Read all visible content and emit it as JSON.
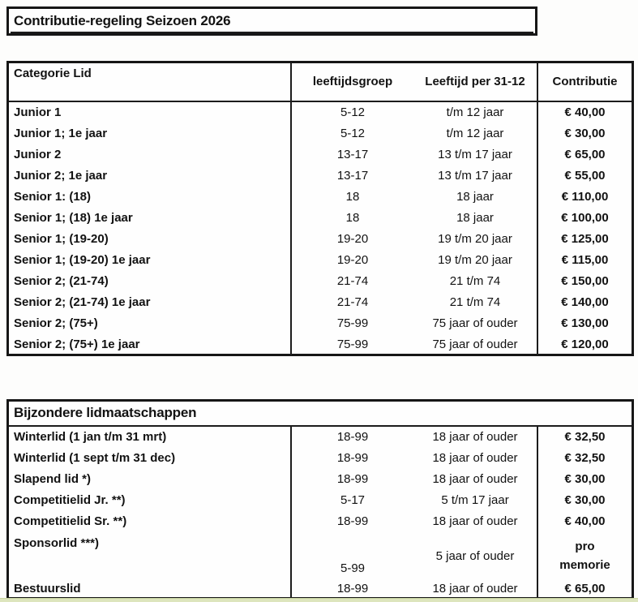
{
  "title": "Contributie-regeling Seizoen 2026",
  "main_table": {
    "headers": {
      "category": "Categorie Lid",
      "age_group": "leeftijdsgroep",
      "age_per_dec31": "Leeftijd per 31-12",
      "fee": "Contributie"
    },
    "rows": [
      {
        "category": "Junior 1",
        "age_group": "5-12",
        "age_per": "t/m 12 jaar",
        "fee": "€ 40,00"
      },
      {
        "category": "Junior 1; 1e jaar",
        "age_group": "5-12",
        "age_per": "t/m 12 jaar",
        "fee": "€ 30,00"
      },
      {
        "category": "Junior 2",
        "age_group": "13-17",
        "age_per": "13 t/m 17 jaar",
        "fee": "€ 65,00"
      },
      {
        "category": "Junior 2; 1e jaar",
        "age_group": "13-17",
        "age_per": "13 t/m 17 jaar",
        "fee": "€ 55,00"
      },
      {
        "category": "Senior 1: (18)",
        "age_group": "18",
        "age_per": "18 jaar",
        "fee": "€ 110,00"
      },
      {
        "category": "Senior 1; (18) 1e jaar",
        "age_group": "18",
        "age_per": "18 jaar",
        "fee": "€ 100,00"
      },
      {
        "category": "Senior 1; (19-20)",
        "age_group": "19-20",
        "age_per": "19 t/m 20 jaar",
        "fee": "€ 125,00"
      },
      {
        "category": "Senior 1; (19-20) 1e jaar",
        "age_group": "19-20",
        "age_per": "19 t/m 20 jaar",
        "fee": "€ 115,00"
      },
      {
        "category": "Senior 2; (21-74)",
        "age_group": "21-74",
        "age_per": "21 t/m 74",
        "fee": "€ 150,00"
      },
      {
        "category": "Senior 2; (21-74) 1e jaar",
        "age_group": "21-74",
        "age_per": "21 t/m 74",
        "fee": "€ 140,00"
      },
      {
        "category": "Senior 2; (75+)",
        "age_group": "75-99",
        "age_per": "75 jaar of ouder",
        "fee": "€ 130,00"
      },
      {
        "category": "Senior 2; (75+) 1e jaar",
        "age_group": "75-99",
        "age_per": "75 jaar of ouder",
        "fee": "€ 120,00"
      }
    ]
  },
  "special_table": {
    "title": "Bijzondere lidmaatschappen",
    "rows": [
      {
        "category": "Winterlid (1 jan t/m 31 mrt)",
        "age_group": "18-99",
        "age_per": "18 jaar of ouder",
        "fee": "€ 32,50"
      },
      {
        "category": "Winterlid (1 sept t/m 31 dec)",
        "age_group": "18-99",
        "age_per": "18 jaar of ouder",
        "fee": "€ 32,50"
      },
      {
        "category": "Slapend lid *)",
        "age_group": "18-99",
        "age_per": "18 jaar of ouder",
        "fee": "€ 30,00"
      },
      {
        "category": "Competitielid Jr. **)",
        "age_group": "5-17",
        "age_per": "5 t/m 17 jaar",
        "fee": "€ 30,00"
      },
      {
        "category": "Competitielid Sr. **)",
        "age_group": "18-99",
        "age_per": "18 jaar of ouder",
        "fee": "€ 40,00"
      },
      {
        "category": "Sponsorlid ***)",
        "age_group": "5-99",
        "age_per": "5 jaar of ouder",
        "fee": "pro memorie"
      },
      {
        "category": "Bestuurslid",
        "age_group": "18-99",
        "age_per": "18 jaar of ouder",
        "fee": "€ 65,00"
      }
    ]
  }
}
